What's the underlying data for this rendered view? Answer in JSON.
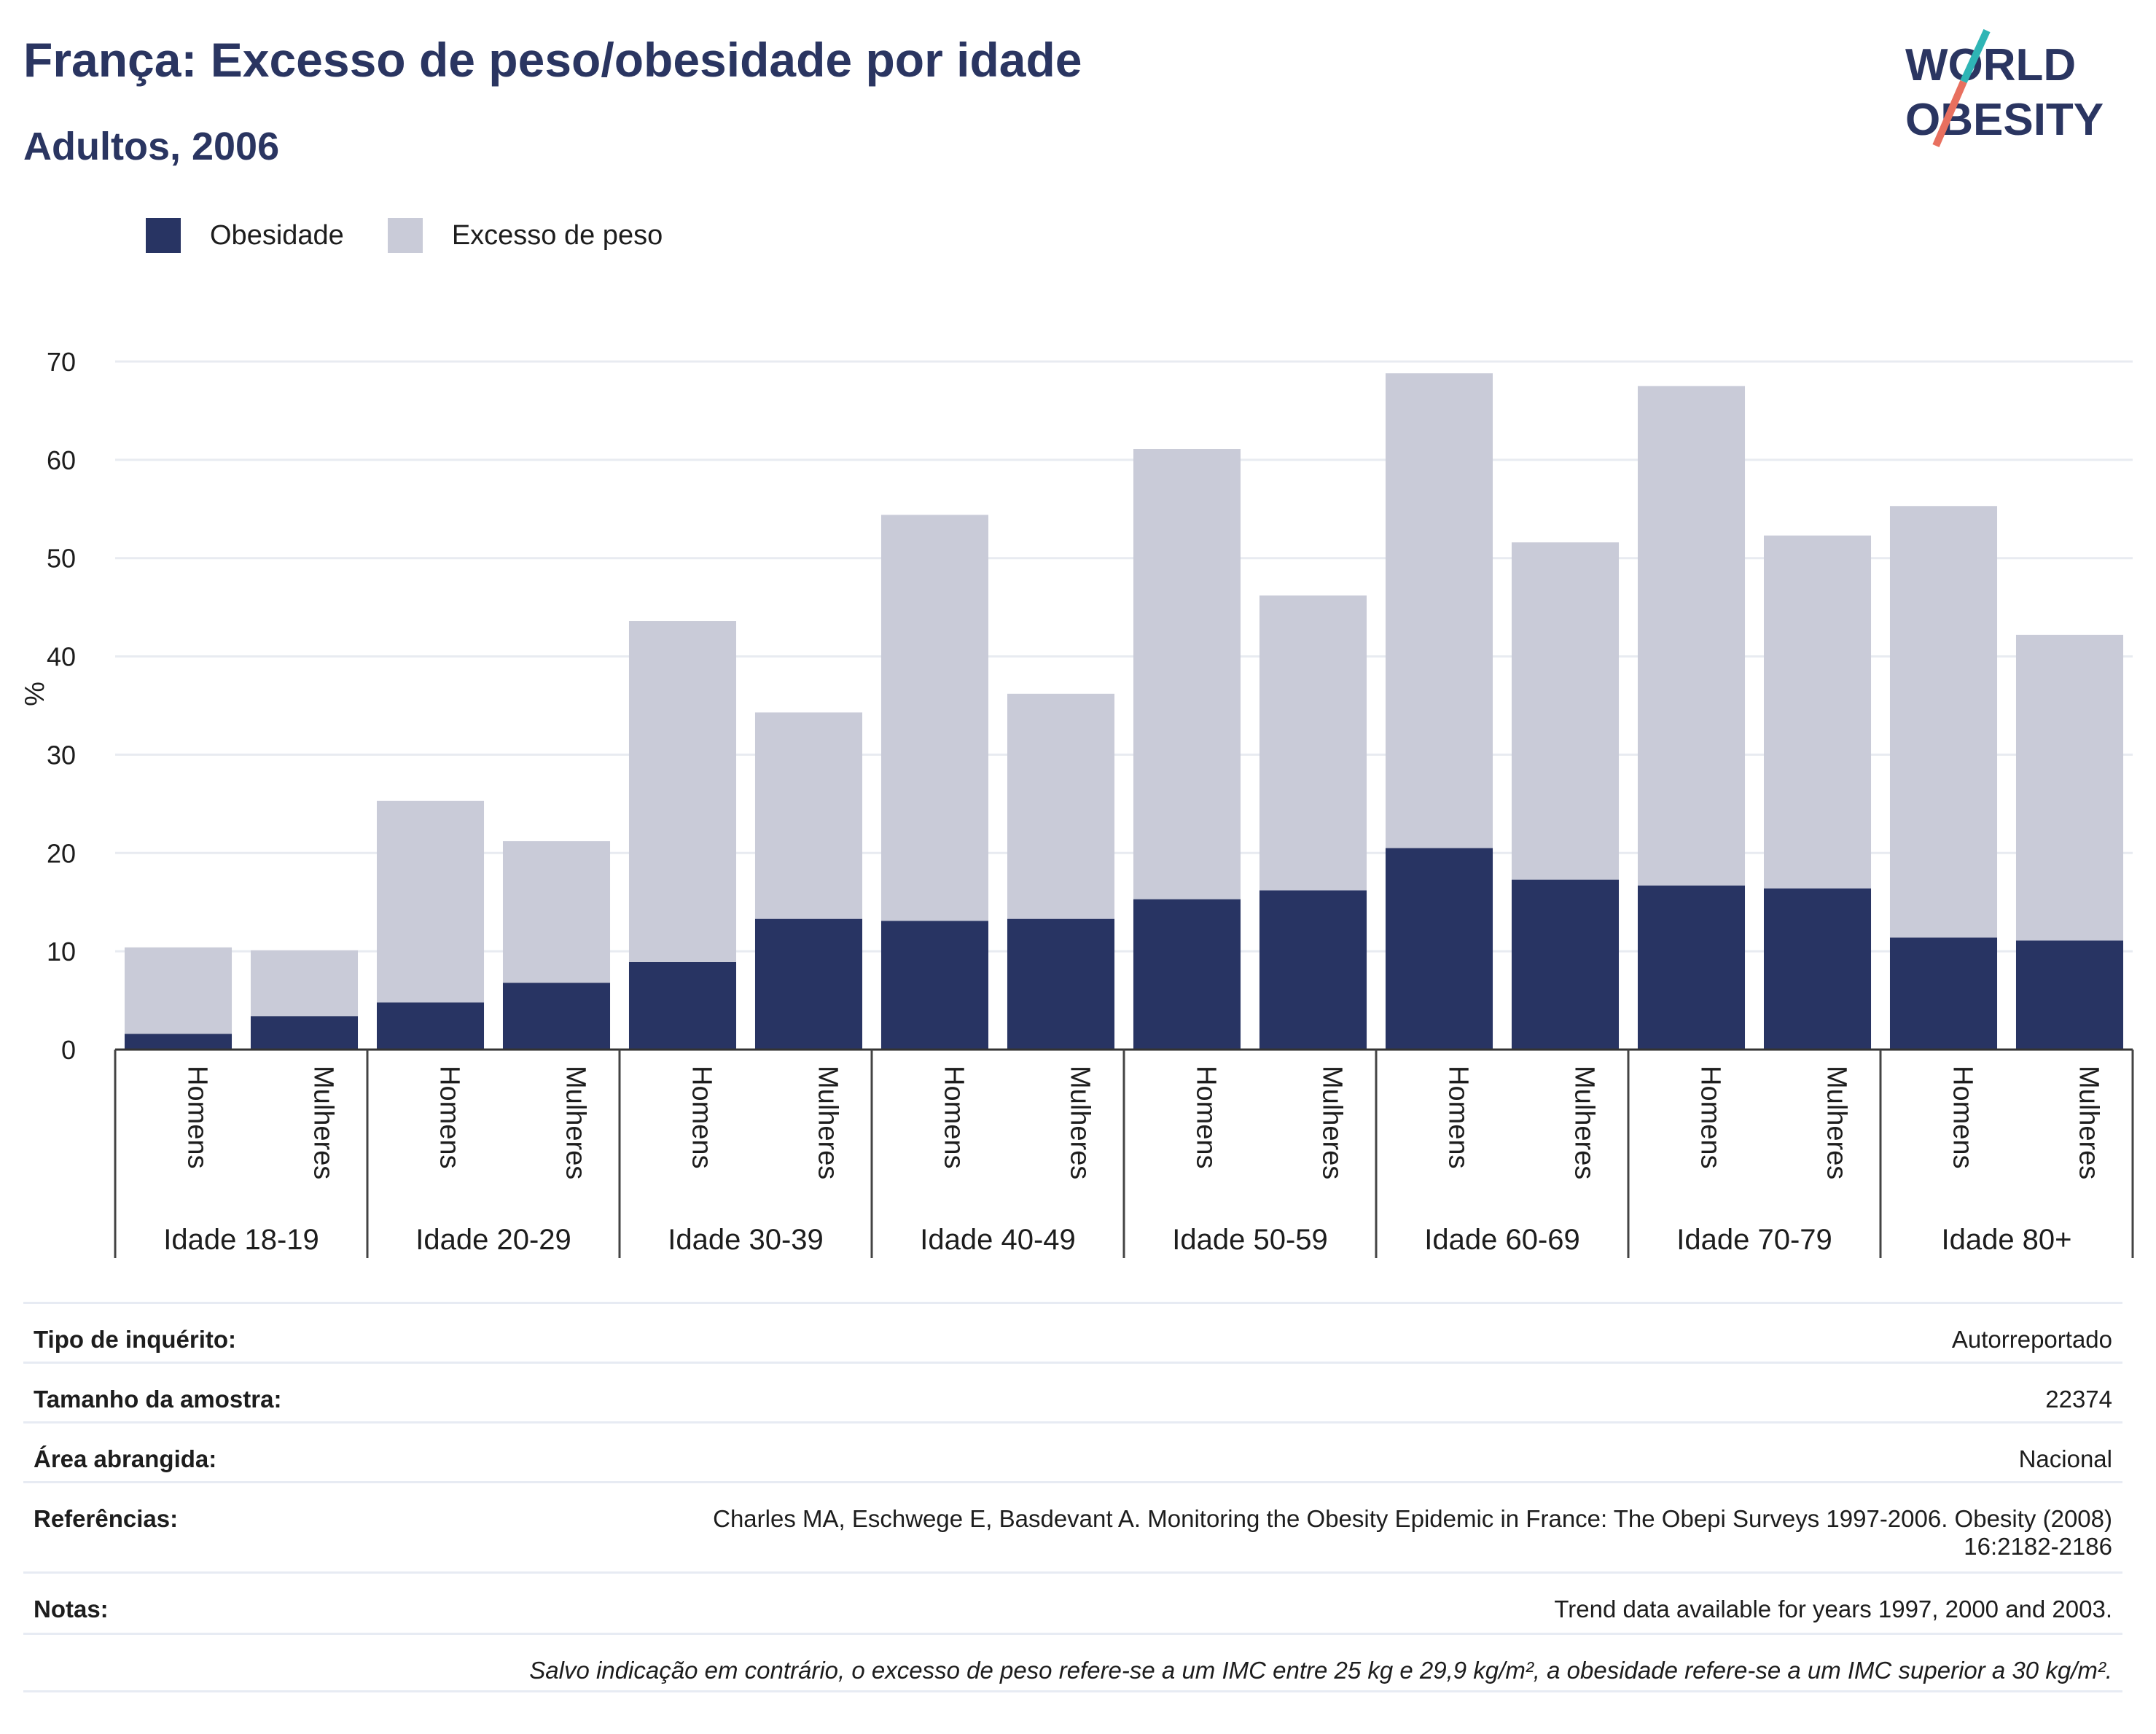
{
  "title": "França: Excesso de peso/obesidade por idade",
  "subtitle": "Adultos, 2006",
  "logo": {
    "line1": "WORLD",
    "line2": "OBESITY"
  },
  "colors": {
    "obesity": "#283463",
    "overweight": "#c9cbd8",
    "title": "#2a3561",
    "grid": "#e8ebf1",
    "accent_teal": "#2fb5b5",
    "accent_coral": "#e8705f"
  },
  "chart_data": {
    "type": "bar",
    "stacked": true,
    "ylabel": "%",
    "ylim": [
      0,
      70
    ],
    "yticks": [
      0,
      10,
      20,
      30,
      40,
      50,
      60,
      70
    ],
    "grid": true,
    "legend_position": "top-left",
    "groups": [
      "Idade 18-19",
      "Idade 20-29",
      "Idade 30-39",
      "Idade 40-49",
      "Idade 50-59",
      "Idade 60-69",
      "Idade 70-79",
      "Idade 80+"
    ],
    "subcategories": [
      "Homens",
      "Mulheres"
    ],
    "series": [
      {
        "name": "Obesidade",
        "values": [
          1.6,
          3.4,
          4.8,
          6.8,
          8.9,
          13.3,
          13.1,
          13.3,
          15.3,
          16.2,
          20.5,
          17.3,
          16.7,
          16.4,
          11.4,
          11.1
        ]
      },
      {
        "name": "Excesso de peso",
        "values": [
          8.8,
          6.7,
          20.5,
          14.4,
          34.7,
          21.0,
          41.3,
          22.9,
          45.8,
          30.0,
          48.3,
          34.3,
          50.8,
          35.9,
          43.9,
          31.1
        ]
      }
    ],
    "totals": [
      10.4,
      10.1,
      25.3,
      21.2,
      43.6,
      34.3,
      54.4,
      36.2,
      61.1,
      46.2,
      68.8,
      51.6,
      67.5,
      52.3,
      55.3,
      42.2
    ]
  },
  "info": {
    "survey_type": {
      "label": "Tipo de inquérito:",
      "value": "Autorreportado"
    },
    "sample_size": {
      "label": "Tamanho da amostra:",
      "value": "22374"
    },
    "area": {
      "label": "Área abrangida:",
      "value": "Nacional"
    },
    "references": {
      "label": "Referências:",
      "value_line1": "Charles MA, Eschwege E, Basdevant A. Monitoring the Obesity Epidemic in France: The Obepi Surveys 1997-2006. Obesity (2008)",
      "value_line2": "16:2182-2186"
    },
    "notes": {
      "label": "Notas:",
      "value": "Trend data available for years 1997, 2000 and 2003."
    },
    "footnote": "Salvo indicação em contrário, o excesso de peso refere-se a um IMC entre 25 kg e 29,9 kg/m², a obesidade refere-se a um IMC superior a 30 kg/m²."
  }
}
